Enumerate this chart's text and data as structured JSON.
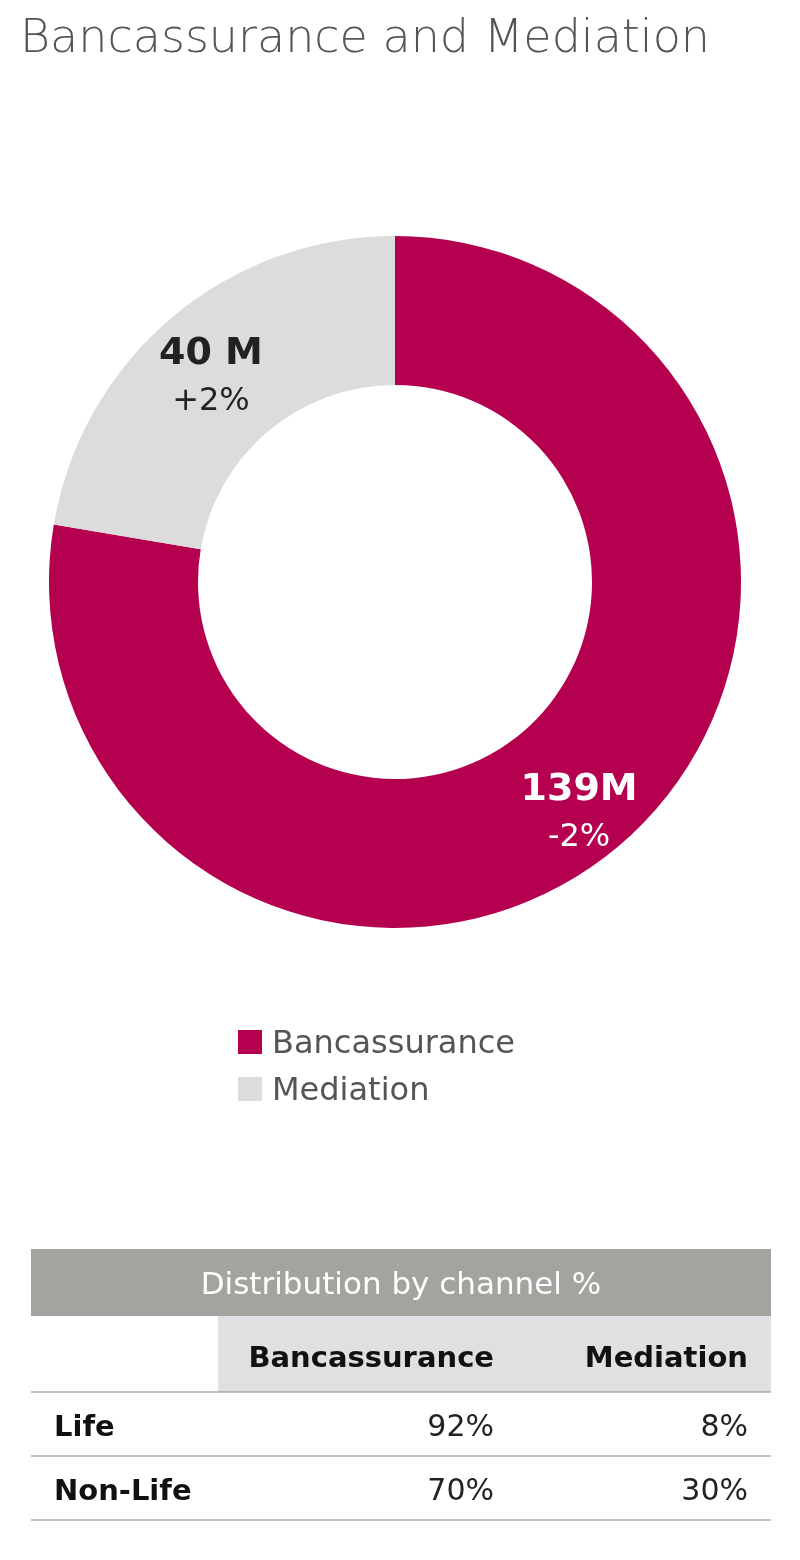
{
  "chart_data": [
    {
      "type": "donut",
      "title": "Bancassurance and Mediation",
      "categories": [
        "Bancassurance",
        "Mediation"
      ],
      "values": [
        139,
        40
      ],
      "colors": [
        "#b50050",
        "#dcdcdc"
      ],
      "value_labels": [
        "139M",
        "40 M"
      ],
      "annotations": [
        "-2%",
        "+2%"
      ],
      "legend": "bottom"
    },
    {
      "type": "other",
      "title": "Distribution by channel %",
      "categories": [
        "Bancassurance",
        "Mediation"
      ],
      "y_categories": [
        "Life",
        "Non-Life"
      ],
      "cell_labels": [
        [
          "92%",
          "8%"
        ],
        [
          "70%",
          "30%"
        ]
      ]
    }
  ]
}
